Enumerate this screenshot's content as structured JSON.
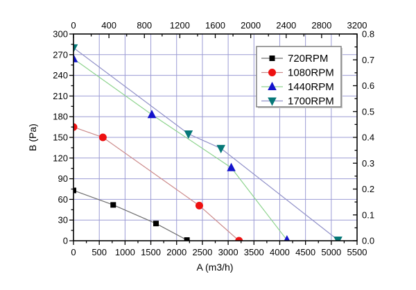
{
  "chart_data": {
    "type": "line",
    "title": "",
    "axes": {
      "bottom": {
        "label": "A (m3/h)",
        "min": 0,
        "max": 5500,
        "major_step": 500,
        "minor_step": 250,
        "tick_labels": [
          "0",
          "500",
          "1000",
          "1500",
          "2000",
          "2500",
          "3000",
          "3500",
          "4000",
          "4500",
          "5000",
          "5500"
        ]
      },
      "top": {
        "label": "",
        "min": 0,
        "max": 3200,
        "major_step": 400,
        "minor_step": 200,
        "tick_labels": [
          "0",
          "400",
          "800",
          "1200",
          "1600",
          "2000",
          "2400",
          "2800",
          "3200"
        ]
      },
      "left": {
        "label": "B (Pa)",
        "min": 0,
        "max": 300,
        "major_step": 30,
        "minor_step": 15,
        "tick_labels": [
          "0",
          "30",
          "60",
          "90",
          "120",
          "150",
          "180",
          "210",
          "240",
          "270",
          "300"
        ]
      },
      "right": {
        "label": "",
        "min": 0,
        "max": 0.8,
        "major_step": 0.1,
        "minor_step": 0.05,
        "tick_labels": [
          "0.0",
          "0.1",
          "0.2",
          "0.3",
          "0.4",
          "0.5",
          "0.6",
          "0.7",
          "0.8"
        ]
      }
    },
    "grid": {
      "show": true,
      "color": "#9b9bd4",
      "x_step": 500,
      "y_step": 30
    },
    "series": [
      {
        "name": "720RPM",
        "line_color": "#6e6e6e",
        "marker": "square",
        "marker_color": "#000000",
        "points": [
          [
            0,
            73
          ],
          [
            770,
            52
          ],
          [
            1600,
            25
          ],
          [
            2200,
            1
          ]
        ]
      },
      {
        "name": "1080RPM",
        "line_color": "#cc8a8a",
        "marker": "circle",
        "marker_color": "#ee1111",
        "points": [
          [
            0,
            165
          ],
          [
            570,
            150
          ],
          [
            2440,
            51
          ],
          [
            3210,
            0
          ]
        ]
      },
      {
        "name": "1440RPM",
        "line_color": "#8ed48e",
        "marker": "triangle-up",
        "marker_color": "#1414cc",
        "points": [
          [
            0,
            264
          ],
          [
            1520,
            183
          ],
          [
            3060,
            106
          ],
          [
            4140,
            1
          ]
        ]
      },
      {
        "name": "1700RPM",
        "line_color": "#9090c8",
        "marker": "triangle-down",
        "marker_color": "#067878",
        "points": [
          [
            0,
            280
          ],
          [
            2230,
            155
          ],
          [
            2860,
            134
          ],
          [
            5130,
            1
          ]
        ]
      }
    ],
    "legend": {
      "position": "top-right",
      "entries": [
        "720RPM",
        "1080RPM",
        "1440RPM",
        "1700RPM"
      ]
    }
  }
}
